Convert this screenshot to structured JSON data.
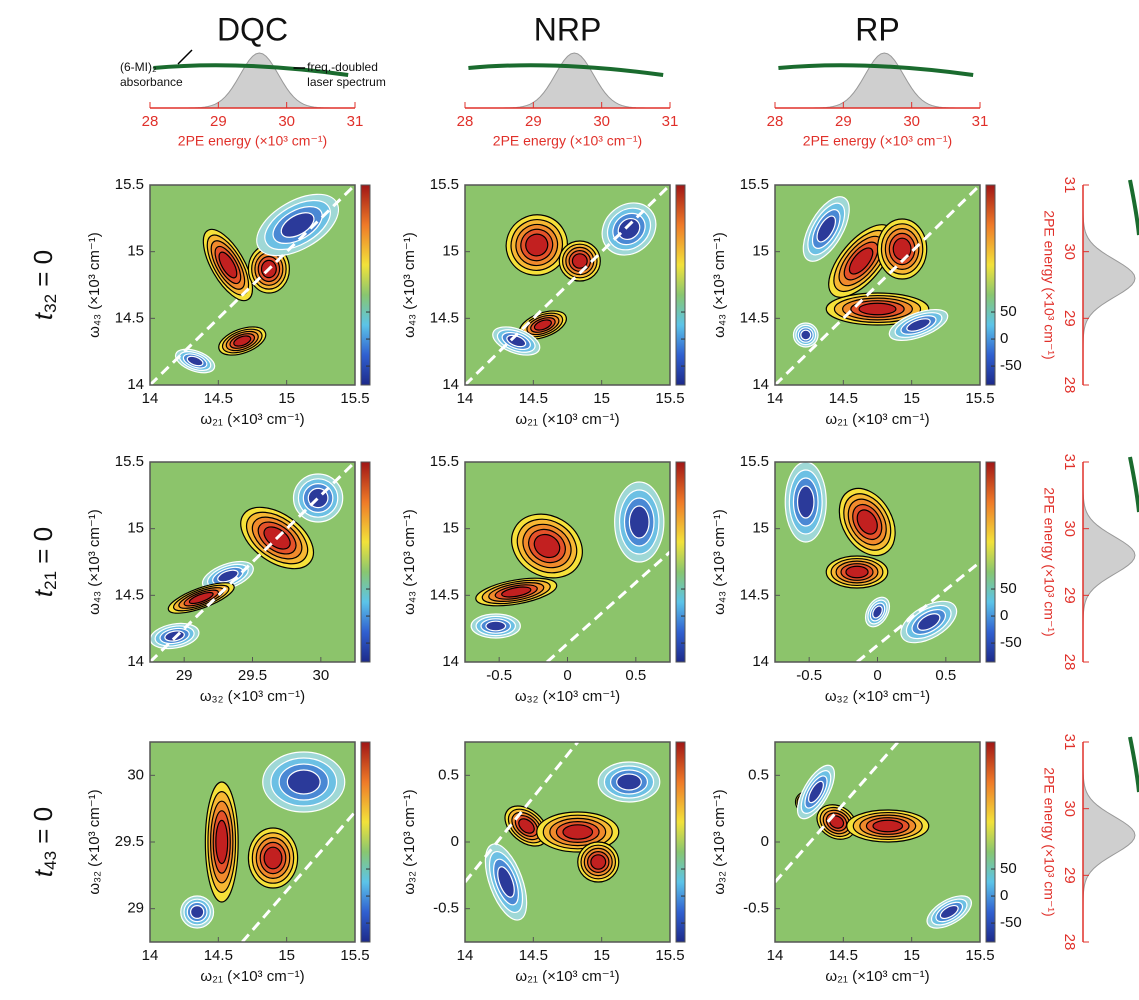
{
  "column_titles": [
    "DQC",
    "NRP",
    "RP"
  ],
  "row_labels": [
    {
      "symbol": "t",
      "subscript": "32",
      "rest": " = 0"
    },
    {
      "symbol": "t",
      "subscript": "21",
      "rest": " = 0"
    },
    {
      "symbol": "t",
      "subscript": "43",
      "rest": " = 0"
    }
  ],
  "top_spectrum": {
    "xlim": [
      28,
      31
    ],
    "xticks": [
      28,
      29,
      30,
      31
    ],
    "xlabel": "2PE energy (×10³ cm⁻¹)",
    "annotations": [
      [
        "(6-MI)₂",
        "absorbance"
      ],
      [
        "freq.-doubled",
        "laser spectrum"
      ]
    ]
  },
  "side_spectrum": {
    "ylim": [
      28,
      31
    ],
    "yticks": [
      28,
      29,
      30,
      31
    ],
    "ylabel": "2PE energy (×10³ cm⁻¹)"
  },
  "colorbar": {
    "clim": [
      -85,
      285
    ],
    "ticks": [
      50,
      0,
      -50
    ]
  },
  "panels": [
    [
      {
        "xlim": [
          14,
          15.5
        ],
        "xticks": [
          14,
          14.5,
          15,
          15.5
        ],
        "xlabel": "ω₂₁ (×10³ cm⁻¹)",
        "ylim": [
          14,
          15.5
        ],
        "yticks": [
          14,
          14.5,
          15,
          15.5
        ],
        "ylabel": "ω₄₃ (×10³ cm⁻¹)"
      },
      {
        "xlim": [
          14,
          15.5
        ],
        "xticks": [
          14,
          14.5,
          15,
          15.5
        ],
        "xlabel": "ω₂₁ (×10³ cm⁻¹)",
        "ylim": [
          14,
          15.5
        ],
        "yticks": [
          14,
          14.5,
          15,
          15.5
        ],
        "ylabel": "ω₄₃ (×10³ cm⁻¹)"
      },
      {
        "xlim": [
          14,
          15.5
        ],
        "xticks": [
          14,
          14.5,
          15,
          15.5
        ],
        "xlabel": "ω₂₁ (×10³ cm⁻¹)",
        "ylim": [
          14,
          15.5
        ],
        "yticks": [
          14,
          14.5,
          15,
          15.5
        ],
        "ylabel": "ω₄₃ (×10³ cm⁻¹)"
      }
    ],
    [
      {
        "xlim": [
          28.75,
          30.25
        ],
        "xticks": [
          29,
          29.5,
          30
        ],
        "xlabel": "ω₃₂ (×10³ cm⁻¹)",
        "ylim": [
          14,
          15.5
        ],
        "yticks": [
          14,
          14.5,
          15,
          15.5
        ],
        "ylabel": "ω₄₃ (×10³ cm⁻¹)"
      },
      {
        "xlim": [
          -0.75,
          0.75
        ],
        "xticks": [
          -0.5,
          0,
          0.5
        ],
        "xlabel": "ω₃₂ (×10³ cm⁻¹)",
        "ylim": [
          14,
          15.5
        ],
        "yticks": [
          14,
          14.5,
          15,
          15.5
        ],
        "ylabel": "ω₄₃ (×10³ cm⁻¹)"
      },
      {
        "xlim": [
          -0.75,
          0.75
        ],
        "xticks": [
          -0.5,
          0,
          0.5
        ],
        "xlabel": "ω₃₂ (×10³ cm⁻¹)",
        "ylim": [
          14,
          15.5
        ],
        "yticks": [
          14,
          14.5,
          15,
          15.5
        ],
        "ylabel": "ω₄₃ (×10³ cm⁻¹)"
      }
    ],
    [
      {
        "xlim": [
          14,
          15.5
        ],
        "xticks": [
          14,
          14.5,
          15,
          15.5
        ],
        "xlabel": "ω₂₁ (×10³ cm⁻¹)",
        "ylim": [
          28.75,
          30.25
        ],
        "yticks": [
          29,
          29.5,
          30
        ],
        "ylabel": "ω₃₂ (×10³ cm⁻¹)"
      },
      {
        "xlim": [
          14,
          15.5
        ],
        "xticks": [
          14,
          14.5,
          15,
          15.5
        ],
        "xlabel": "ω₂₁ (×10³ cm⁻¹)",
        "ylim": [
          -0.75,
          0.75
        ],
        "yticks": [
          -0.5,
          0,
          0.5
        ],
        "ylabel": "ω₃₂ (×10³ cm⁻¹)"
      },
      {
        "xlim": [
          14,
          15.5
        ],
        "xticks": [
          14,
          14.5,
          15,
          15.5
        ],
        "xlabel": "ω₂₁ (×10³ cm⁻¹)",
        "ylim": [
          -0.75,
          0.75
        ],
        "yticks": [
          -0.5,
          0,
          0.5
        ],
        "ylabel": "ω₃₂ (×10³ cm⁻¹)"
      }
    ]
  ]
}
